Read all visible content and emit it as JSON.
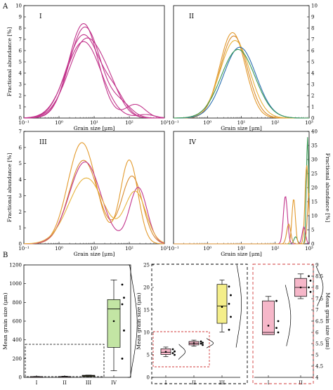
{
  "panel_labels": [
    "A",
    "B"
  ],
  "chart_data": [
    {
      "id": "A-I",
      "type": "line",
      "panel_label": "I",
      "xlabel": "Grain size [μm]",
      "ylabel": "Fractional abundance [%]",
      "xscale": "log",
      "xlim": [
        0.1,
        1000
      ],
      "ylim": [
        0,
        10
      ],
      "xticks": [
        "10⁻¹",
        "10⁰",
        "10¹",
        "10²",
        "10³"
      ],
      "yticks": [
        "0",
        "1",
        "2",
        "3",
        "4",
        "5",
        "6",
        "7",
        "8",
        "9",
        "10"
      ],
      "series": [
        {
          "color": "#c2358c",
          "peak_x": 5,
          "peak_y": 8.4,
          "width": 0.42,
          "tail": [
            [
              150,
              1.2,
              0.28
            ]
          ]
        },
        {
          "color": "#c2358c",
          "peak_x": 5.5,
          "peak_y": 8.1,
          "width": 0.45,
          "tail": [
            [
              60,
              1.1,
              0.3
            ]
          ]
        },
        {
          "color": "#c2358c",
          "peak_x": 5,
          "peak_y": 7.4,
          "width": 0.48,
          "tail": [
            [
              40,
              1.6,
              0.3
            ]
          ]
        },
        {
          "color": "#c2358c",
          "peak_x": 6,
          "peak_y": 7.0,
          "width": 0.5,
          "tail": [
            [
              30,
              1.2,
              0.32
            ]
          ]
        },
        {
          "color": "#c2358c",
          "peak_x": 5,
          "peak_y": 6.8,
          "width": 0.5,
          "tail": [
            [
              300,
              0.3,
              0.25
            ]
          ]
        }
      ]
    },
    {
      "id": "A-II",
      "type": "line",
      "panel_label": "II",
      "xlabel": "Grain size [μm]",
      "ylabel": "",
      "xscale": "log",
      "xlim": [
        0.1,
        1000
      ],
      "ylim": [
        0,
        10
      ],
      "xticks": [
        "10⁻¹",
        "10⁰",
        "10¹",
        "10²",
        "10³"
      ],
      "yticks": [
        "0",
        "1",
        "2",
        "3",
        "4",
        "5",
        "6",
        "7",
        "8",
        "9",
        "10"
      ],
      "series": [
        {
          "color": "#e39a2d",
          "peak_x": 5.5,
          "peak_y": 7.6,
          "width": 0.38,
          "tail": []
        },
        {
          "color": "#d98c2e",
          "peak_x": 6,
          "peak_y": 7.3,
          "width": 0.4,
          "tail": []
        },
        {
          "color": "#e7b23c",
          "peak_x": 6.5,
          "peak_y": 6.9,
          "width": 0.44,
          "tail": []
        },
        {
          "color": "#2a6fb0",
          "peak_x": 9,
          "peak_y": 6.3,
          "width": 0.48,
          "tail": []
        },
        {
          "color": "#3a9a56",
          "peak_x": 8,
          "peak_y": 6.1,
          "width": 0.5,
          "tail": []
        }
      ]
    },
    {
      "id": "A-III",
      "type": "line",
      "panel_label": "III",
      "xlabel": "Grain size [μm]",
      "ylabel": "Fractional abundance [%]",
      "xscale": "log",
      "xlim": [
        0.1,
        1000
      ],
      "ylim": [
        0,
        7
      ],
      "xticks": [
        "10⁻¹",
        "10⁰",
        "10¹",
        "10²",
        "10³"
      ],
      "yticks": [
        "0",
        "1",
        "2",
        "3",
        "4",
        "5",
        "6",
        "7"
      ],
      "series": [
        {
          "color": "#e39a2d",
          "peak_x": 4.5,
          "peak_y": 6.3,
          "width": 0.4,
          "tail": [
            [
              100,
              5.2,
              0.25
            ]
          ]
        },
        {
          "color": "#d98c2e",
          "peak_x": 5,
          "peak_y": 5.2,
          "width": 0.42,
          "tail": [
            [
              120,
              4.2,
              0.3
            ]
          ]
        },
        {
          "color": "#c2358c",
          "peak_x": 5.5,
          "peak_y": 5.1,
          "width": 0.45,
          "tail": [
            [
              180,
              3.5,
              0.25
            ]
          ]
        },
        {
          "color": "#e7b23c",
          "peak_x": 6,
          "peak_y": 4.1,
          "width": 0.5,
          "tail": [
            [
              150,
              3.2,
              0.3
            ]
          ]
        }
      ]
    },
    {
      "id": "A-IV",
      "type": "line",
      "panel_label": "IV",
      "xlabel": "Grain size [μm]",
      "ylabel": "Fractional abundance [%]",
      "xscale": "log",
      "xlim": [
        0.1,
        1000
      ],
      "ylim": [
        0,
        40
      ],
      "xticks": [
        "10⁻¹",
        "10⁰",
        "10¹",
        "10²",
        "10³"
      ],
      "yticks": [
        "0",
        "5",
        "10",
        "15",
        "20",
        "25",
        "30",
        "35",
        "40"
      ],
      "series": [
        {
          "color": "#3a9a56",
          "peak_x": 900,
          "peak_y": 38,
          "width": 0.035,
          "tail": [
            [
              400,
              2.5,
              0.05
            ]
          ]
        },
        {
          "color": "#e39a2d",
          "peak_x": 850,
          "peak_y": 28,
          "width": 0.05,
          "tail": [
            [
              350,
              16,
              0.05
            ]
          ]
        },
        {
          "color": "#c2358c",
          "peak_x": 200,
          "peak_y": 17,
          "width": 0.06,
          "tail": [
            [
              700,
              6,
              0.05
            ]
          ]
        },
        {
          "color": "#d98c2e",
          "peak_x": 1000,
          "peak_y": 18,
          "width": 0.05,
          "tail": [
            [
              250,
              7,
              0.06
            ]
          ]
        }
      ]
    },
    {
      "id": "B-left",
      "type": "box",
      "ylabel": "Mean grain size (μm)",
      "ylim": [
        0,
        1200
      ],
      "yticks": [
        "0",
        "200",
        "400",
        "600",
        "800",
        "1000",
        "1200"
      ],
      "categories": [
        "I",
        "II",
        "III",
        "IV"
      ],
      "boxes": [
        {
          "q1": 2,
          "median": 6,
          "q3": 8,
          "whisker": [
            1,
            10
          ],
          "fill": "#f6b7c9"
        },
        {
          "q1": 5,
          "median": 8,
          "q3": 9,
          "whisker": [
            4,
            12
          ],
          "fill": "#f6b7c9"
        },
        {
          "q1": 10,
          "median": 16,
          "q3": 22,
          "whisker": [
            8,
            24
          ],
          "fill": "#f4ee8a"
        },
        {
          "q1": 320,
          "median": 730,
          "q3": 830,
          "whisker": [
            70,
            1040
          ],
          "fill": "#c3e5a4",
          "mean": 600,
          "points": [
            990,
            850,
            780,
            500,
            200
          ]
        }
      ]
    },
    {
      "id": "B-middle",
      "type": "box",
      "ylabel": "Mean grain size (μm)",
      "ylim": [
        0,
        26
      ],
      "yticks": [
        "0",
        "5",
        "10",
        "15",
        "20",
        "25"
      ],
      "categories": [
        "I",
        "II",
        "III"
      ],
      "boxes": [
        {
          "q1": 5.3,
          "median": 5.8,
          "q3": 6.6,
          "whisker": [
            4.8,
            7.0
          ],
          "fill": "#f6b7c9",
          "mean": 5.9,
          "points": [
            6.5,
            6.0,
            5.6,
            5.2
          ]
        },
        {
          "q1": 7.5,
          "median": 7.9,
          "q3": 8.3,
          "whisker": [
            7.2,
            8.6
          ],
          "fill": "#f6b7c9",
          "mean": 7.9,
          "points": [
            8.3,
            8.0,
            7.8,
            7.5
          ]
        },
        {
          "q1": 12.5,
          "median": 16.5,
          "q3": 21.5,
          "whisker": [
            10.5,
            22.5
          ],
          "fill": "#f4ee8a",
          "mean": 16.3,
          "points": [
            21,
            19,
            17,
            14,
            11
          ]
        }
      ]
    },
    {
      "id": "B-right",
      "type": "box",
      "ylabel": "Mean grain size (μm)",
      "ylim": [
        4,
        9
      ],
      "yticks": [
        "4",
        "4.5",
        "5",
        "5.5",
        "6",
        "6.5",
        "7",
        "7.5",
        "8",
        "8.5",
        "9"
      ],
      "categories": [
        "I",
        "II"
      ],
      "boxes": [
        {
          "q1": 5.9,
          "median": 6.0,
          "q3": 7.4,
          "whisker": [
            5.9,
            7.6
          ],
          "fill": "#f6b7c9",
          "mean": 6.3,
          "points": [
            7.4,
            6.5,
            6.2,
            6.0
          ]
        },
        {
          "q1": 7.6,
          "median": 8.0,
          "q3": 8.4,
          "whisker": [
            7.5,
            8.6
          ],
          "fill": "#f6b7c9",
          "mean": 8.0,
          "points": [
            8.5,
            8.3,
            8.0,
            7.8
          ]
        }
      ]
    }
  ]
}
